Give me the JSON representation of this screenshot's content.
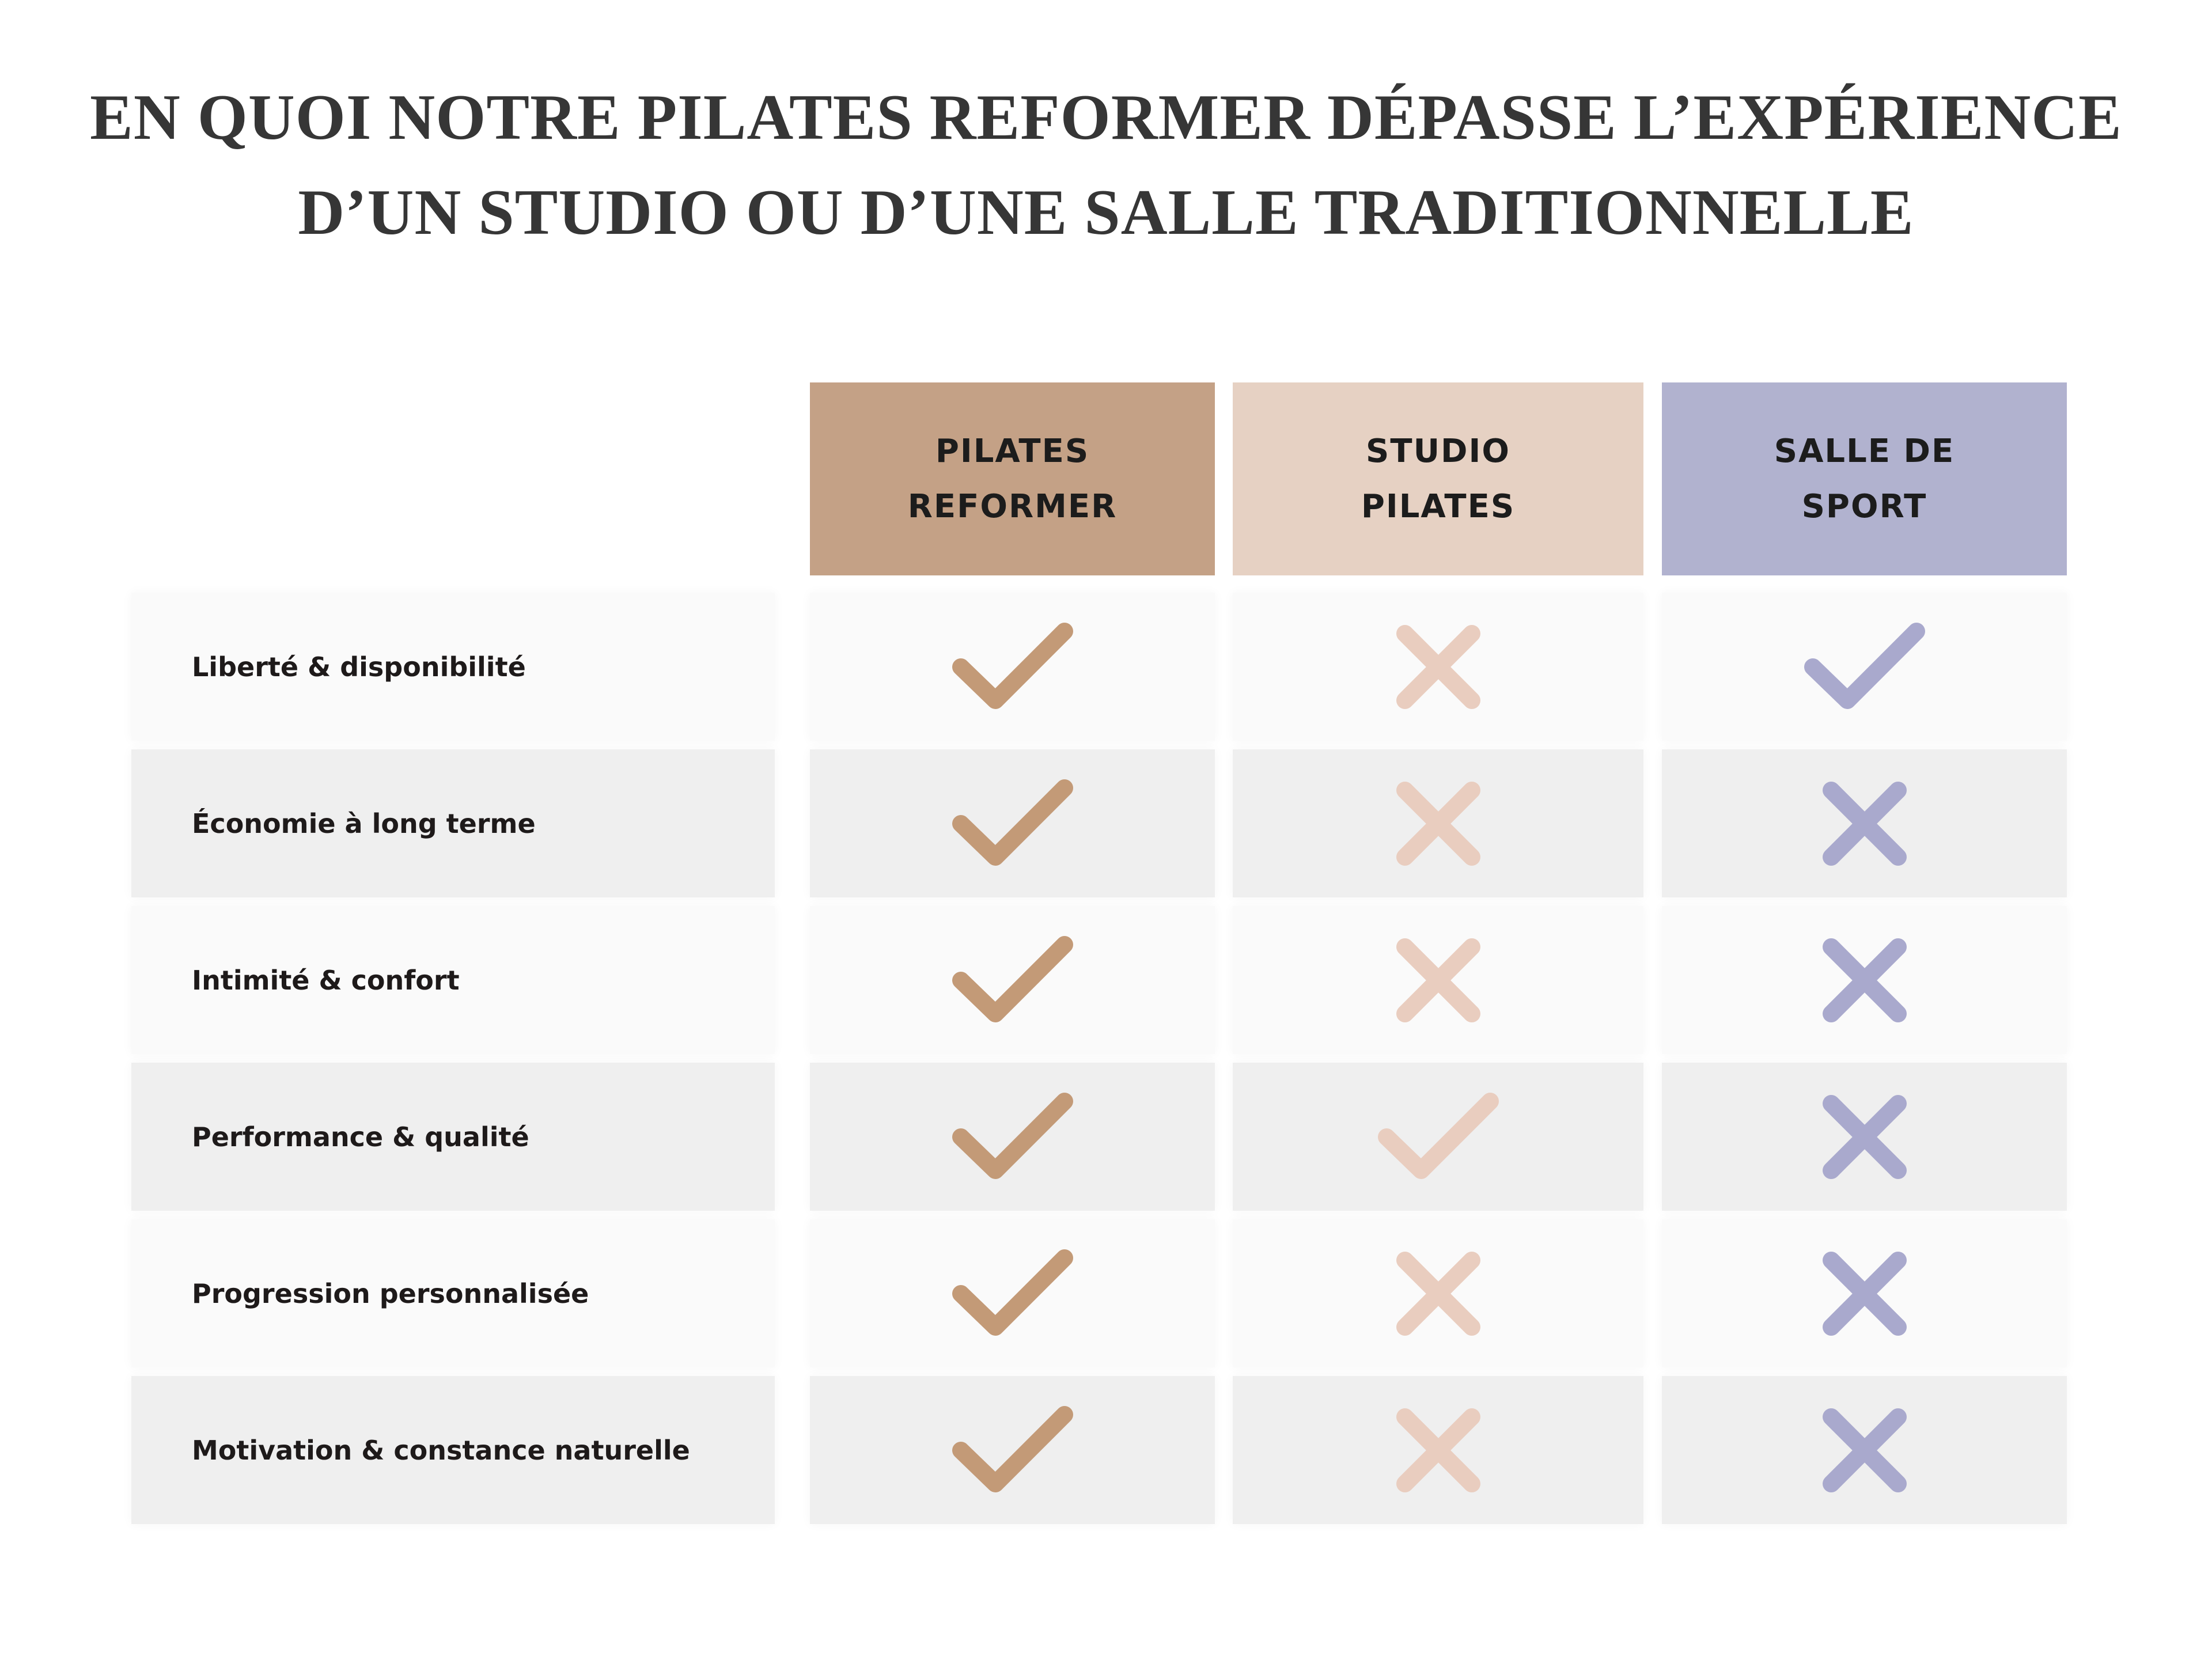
{
  "title": [
    "EN QUOI NOTRE PILATES REFORMER DÉPASSE L’EXPÉRIENCE",
    "D’UN STUDIO OU D’UNE SALLE TRADITIONNELLE"
  ],
  "columns": [
    {
      "label": "PILATES REFORMER",
      "color": "#c4a186",
      "mark_color": "#c39a77"
    },
    {
      "label": "STUDIO PILATES",
      "color": "#e6d1c3",
      "mark_color": "#e9cdbf"
    },
    {
      "label": "SALLE DE SPORT",
      "color": "#b1b2cf",
      "mark_color": "#a9a9cd"
    }
  ],
  "rows": [
    {
      "label": "Liberté & disponibilité",
      "values": [
        true,
        false,
        true
      ]
    },
    {
      "label": "Économie à long terme",
      "values": [
        true,
        false,
        false
      ]
    },
    {
      "label": "Intimité & confort",
      "values": [
        true,
        false,
        false
      ]
    },
    {
      "label": "Performance & qualité",
      "values": [
        true,
        true,
        false
      ]
    },
    {
      "label": "Progression personnalisée",
      "values": [
        true,
        false,
        false
      ]
    },
    {
      "label": "Motivation & constance naturelle",
      "values": [
        true,
        false,
        false
      ]
    }
  ]
}
